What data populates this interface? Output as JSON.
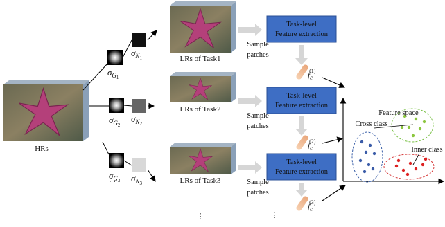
{
  "hr_label": "HRs",
  "branches": [
    {
      "blur": {
        "base": "σ",
        "sub": "G",
        "index": "1"
      },
      "noise": {
        "base": "σ",
        "sub": "N",
        "index": "1"
      },
      "lr_label": "LRs of Task1",
      "sample": [
        "Sample",
        "patches"
      ],
      "extractor": [
        "Task-level",
        "Feature extraction"
      ],
      "feature": {
        "base": "f",
        "sub": "c",
        "sup": "(1)"
      }
    },
    {
      "blur": {
        "base": "σ",
        "sub": "G",
        "index": "2"
      },
      "noise": {
        "base": "σ",
        "sub": "N",
        "index": "2"
      },
      "lr_label": "LRs of Task2",
      "sample": [
        "Sample",
        "patches"
      ],
      "extractor": [
        "Task-level",
        "Feature extraction"
      ],
      "feature": {
        "base": "f",
        "sub": "c",
        "sup": "(2)"
      }
    },
    {
      "blur": {
        "base": "σ",
        "sub": "G",
        "index": "3"
      },
      "noise": {
        "base": "σ",
        "sub": "N",
        "index": "3"
      },
      "lr_label": "LRs of Task3",
      "sample": [
        "Sample",
        "patches"
      ],
      "extractor": [
        "Task-level",
        "Feature extraction"
      ],
      "feature": {
        "base": "f",
        "sub": "c",
        "sup": "(3)"
      }
    }
  ],
  "more_kernels": "· ·",
  "more_tasks": "⋮",
  "more_features": "⋮",
  "feature_space": {
    "title": "Feature space",
    "cross_label": "Cross class",
    "inner_label": "Inner class"
  }
}
